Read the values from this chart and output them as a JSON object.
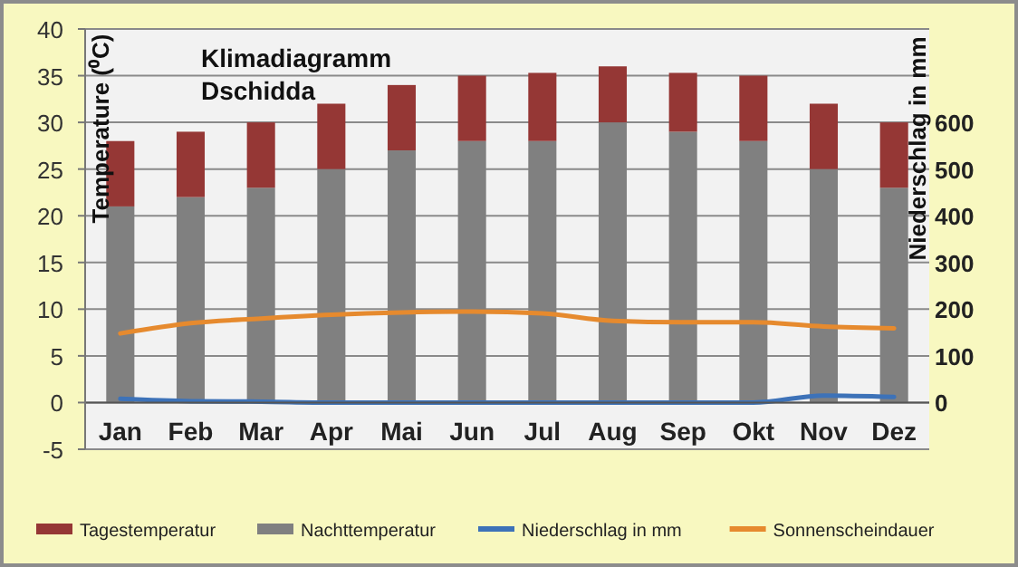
{
  "chart_data": {
    "type": "bar",
    "title": "Klimadiagramm",
    "subtitle": "Dschidda",
    "ylabel": "Temperature (⁰C)",
    "y2label": "Niederschlag in mm",
    "categories": [
      "Jan",
      "Feb",
      "Mar",
      "Apr",
      "Mai",
      "Jun",
      "Jul",
      "Aug",
      "Sep",
      "Okt",
      "Nov",
      "Dez"
    ],
    "stacked": true,
    "series": [
      {
        "name": "Nachttemperatur",
        "color": "#808080",
        "values": [
          21,
          22,
          23,
          25,
          27,
          28,
          28,
          30,
          29,
          28,
          25,
          23
        ]
      },
      {
        "name": "Tagestemperatur",
        "color": "#953735",
        "values": [
          7,
          7,
          7,
          7,
          7,
          7,
          7.3,
          6,
          6.3,
          7,
          7,
          7
        ]
      },
      {
        "name": "Niederschlag in mm",
        "type": "line",
        "axis": "y2",
        "color": "#3d72b8",
        "values": [
          8,
          3,
          2,
          0,
          0,
          0,
          0,
          0,
          0,
          0,
          15,
          12
        ]
      },
      {
        "name": "Sonnenscheindauer",
        "type": "line",
        "axis": "y2",
        "color": "#e68a2e",
        "values": [
          148,
          170,
          180,
          188,
          193,
          195,
          191,
          175,
          172,
          172,
          163,
          159
        ]
      }
    ],
    "ylim": [
      -5,
      40
    ],
    "yticks": [
      -5,
      0,
      5,
      10,
      15,
      20,
      25,
      30,
      35,
      40
    ],
    "y2lim": [
      -100,
      800
    ],
    "y2ticks": [
      0,
      100,
      200,
      300,
      400,
      500,
      600
    ],
    "grid": "y",
    "legend": "bottom",
    "marker": "none",
    "line_style": "solid"
  }
}
